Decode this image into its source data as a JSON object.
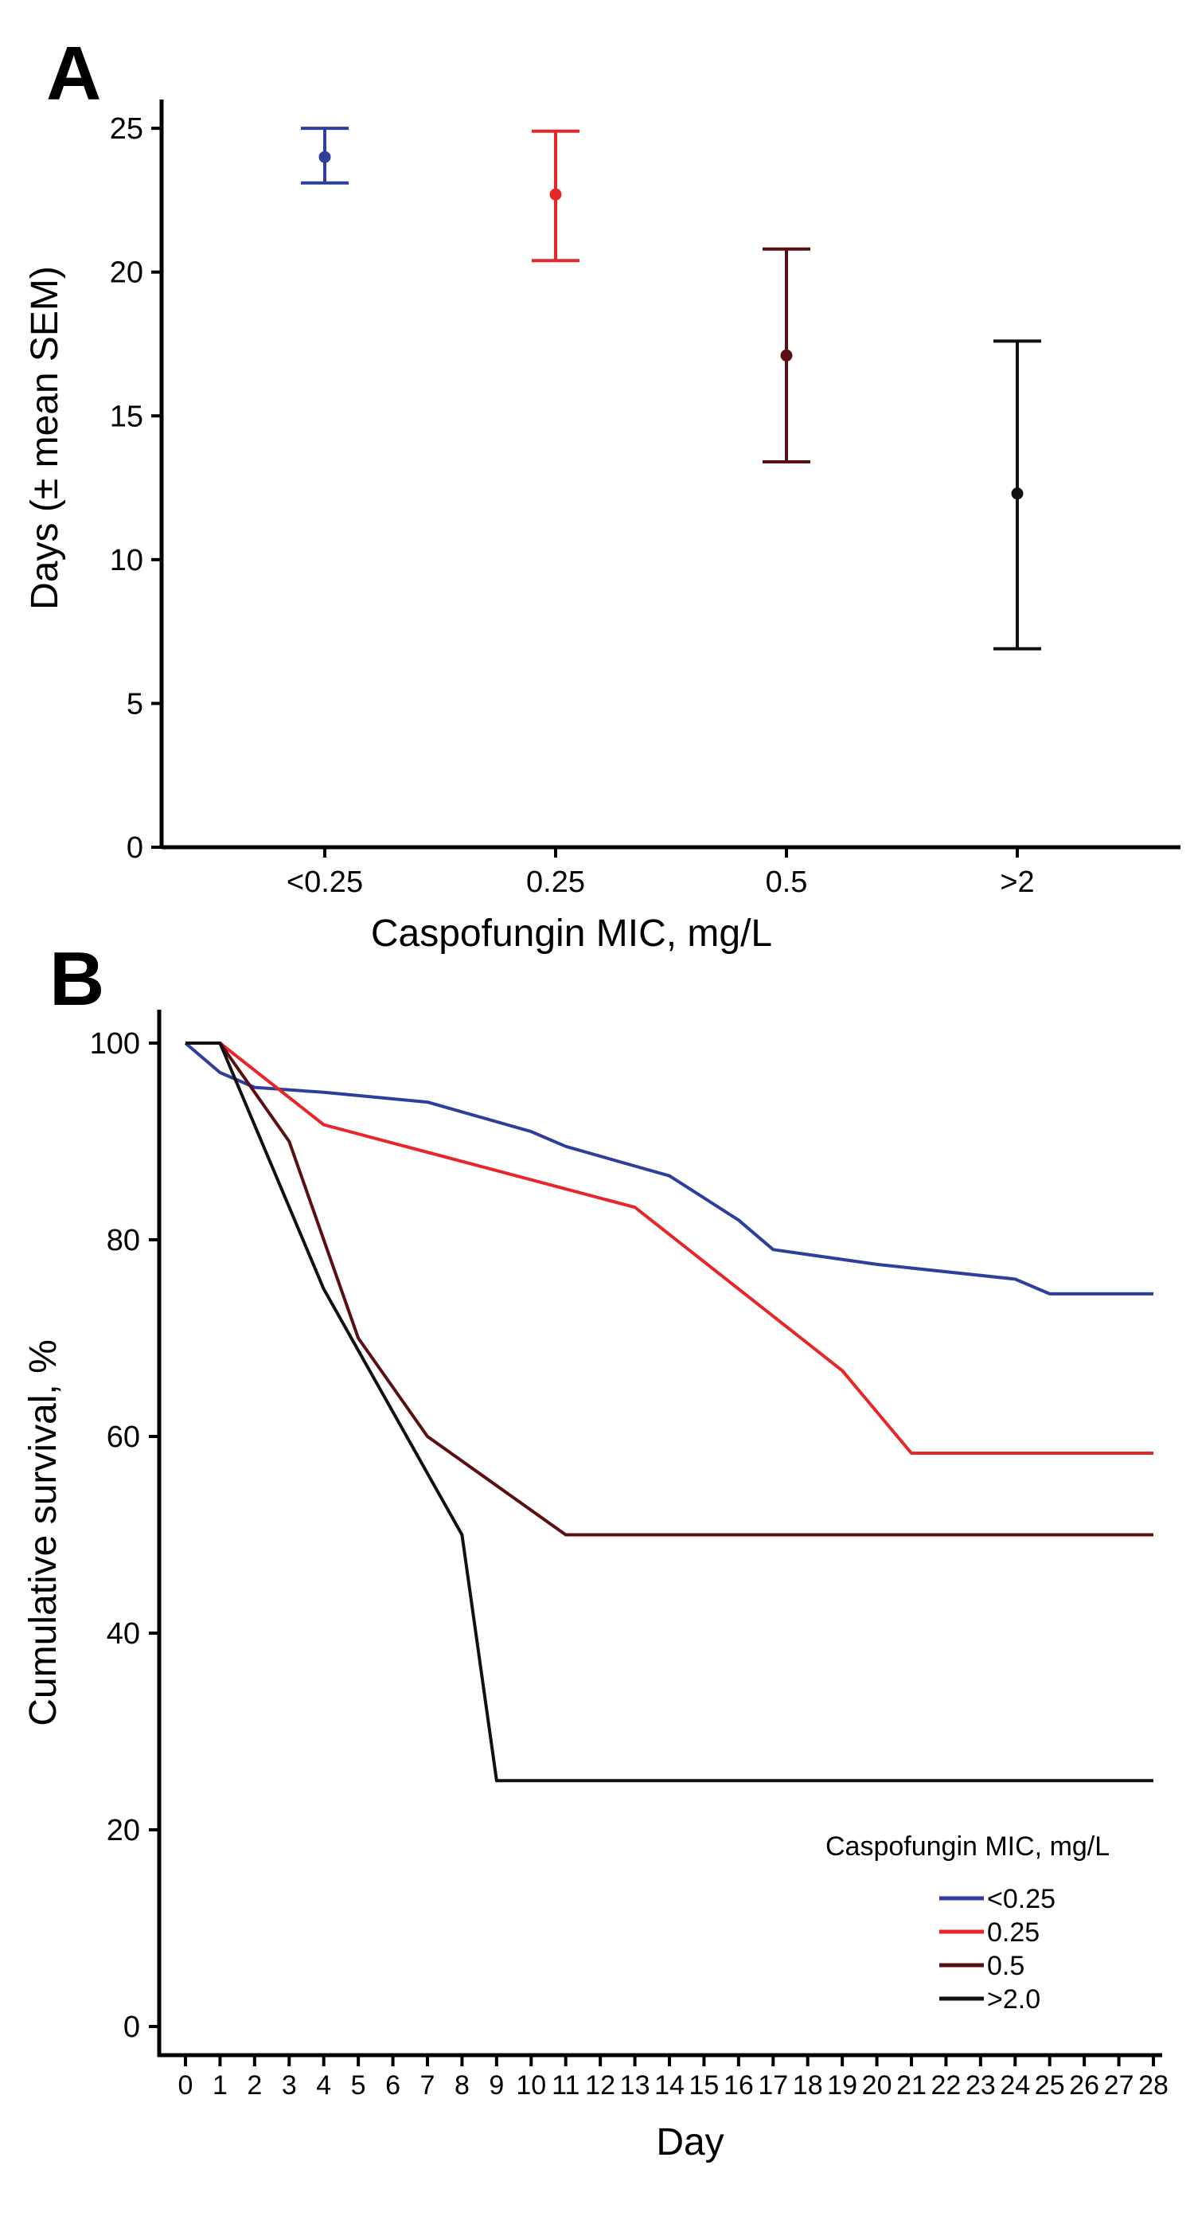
{
  "chart_data": [
    {
      "panel_label": "A",
      "type": "scatter",
      "subtype": "error-bar",
      "categories": [
        "<0.25",
        "0.25",
        "0.5",
        ">2"
      ],
      "means": [
        24,
        22.7,
        17.1,
        12.3
      ],
      "upper": [
        25,
        24.9,
        20.8,
        17.6
      ],
      "lower": [
        23.1,
        20.4,
        13.4,
        6.9
      ],
      "colors": [
        "#2d3f9a",
        "#e8262a",
        "#5a1010",
        "#111111"
      ],
      "xlabel": "Caspofungin MIC, mg/L",
      "ylabel": "Days (± mean SEM)",
      "ylim": [
        0,
        26
      ],
      "yticks": [
        0,
        5,
        10,
        15,
        20,
        25
      ],
      "grid": false
    },
    {
      "panel_label": "B",
      "type": "line",
      "subtype": "step",
      "xlabel": "Day",
      "ylabel": "Cumulative survival, %",
      "xlim": [
        0,
        28
      ],
      "ylim": [
        0,
        100
      ],
      "xticks": [
        0,
        1,
        2,
        3,
        4,
        5,
        6,
        7,
        8,
        9,
        10,
        11,
        12,
        13,
        14,
        15,
        16,
        17,
        18,
        19,
        20,
        21,
        22,
        23,
        24,
        25,
        26,
        27,
        28
      ],
      "yticks": [
        0,
        20,
        40,
        60,
        80,
        100
      ],
      "grid": false,
      "legend_title": "Caspofungin MIC, mg/L",
      "legend_position": "bottom-right",
      "series": [
        {
          "name": "<0.25",
          "color": "#2d3f9a",
          "points": [
            [
              0,
              100
            ],
            [
              1,
              97
            ],
            [
              2,
              95.5
            ],
            [
              4,
              95
            ],
            [
              7,
              94
            ],
            [
              10,
              91
            ],
            [
              11,
              89.5
            ],
            [
              14,
              86.5
            ],
            [
              16,
              82
            ],
            [
              17,
              79
            ],
            [
              20,
              77.5
            ],
            [
              24,
              76
            ],
            [
              25,
              74.5
            ],
            [
              28,
              74.5
            ]
          ]
        },
        {
          "name": "0.25",
          "color": "#e8262a",
          "points": [
            [
              0,
              100
            ],
            [
              1,
              100
            ],
            [
              4,
              91.7
            ],
            [
              13,
              83.3
            ],
            [
              19,
              66.7
            ],
            [
              21,
              58.3
            ],
            [
              28,
              58.3
            ]
          ]
        },
        {
          "name": "0.5",
          "color": "#5a1010",
          "points": [
            [
              0,
              100
            ],
            [
              1,
              100
            ],
            [
              3,
              90
            ],
            [
              5,
              70
            ],
            [
              7,
              60
            ],
            [
              11,
              50
            ],
            [
              28,
              50
            ]
          ]
        },
        {
          "name": ">2.0",
          "color": "#111111",
          "points": [
            [
              0,
              100
            ],
            [
              1,
              100
            ],
            [
              4,
              75
            ],
            [
              8,
              50
            ],
            [
              9,
              25
            ],
            [
              28,
              25
            ]
          ]
        }
      ]
    }
  ]
}
